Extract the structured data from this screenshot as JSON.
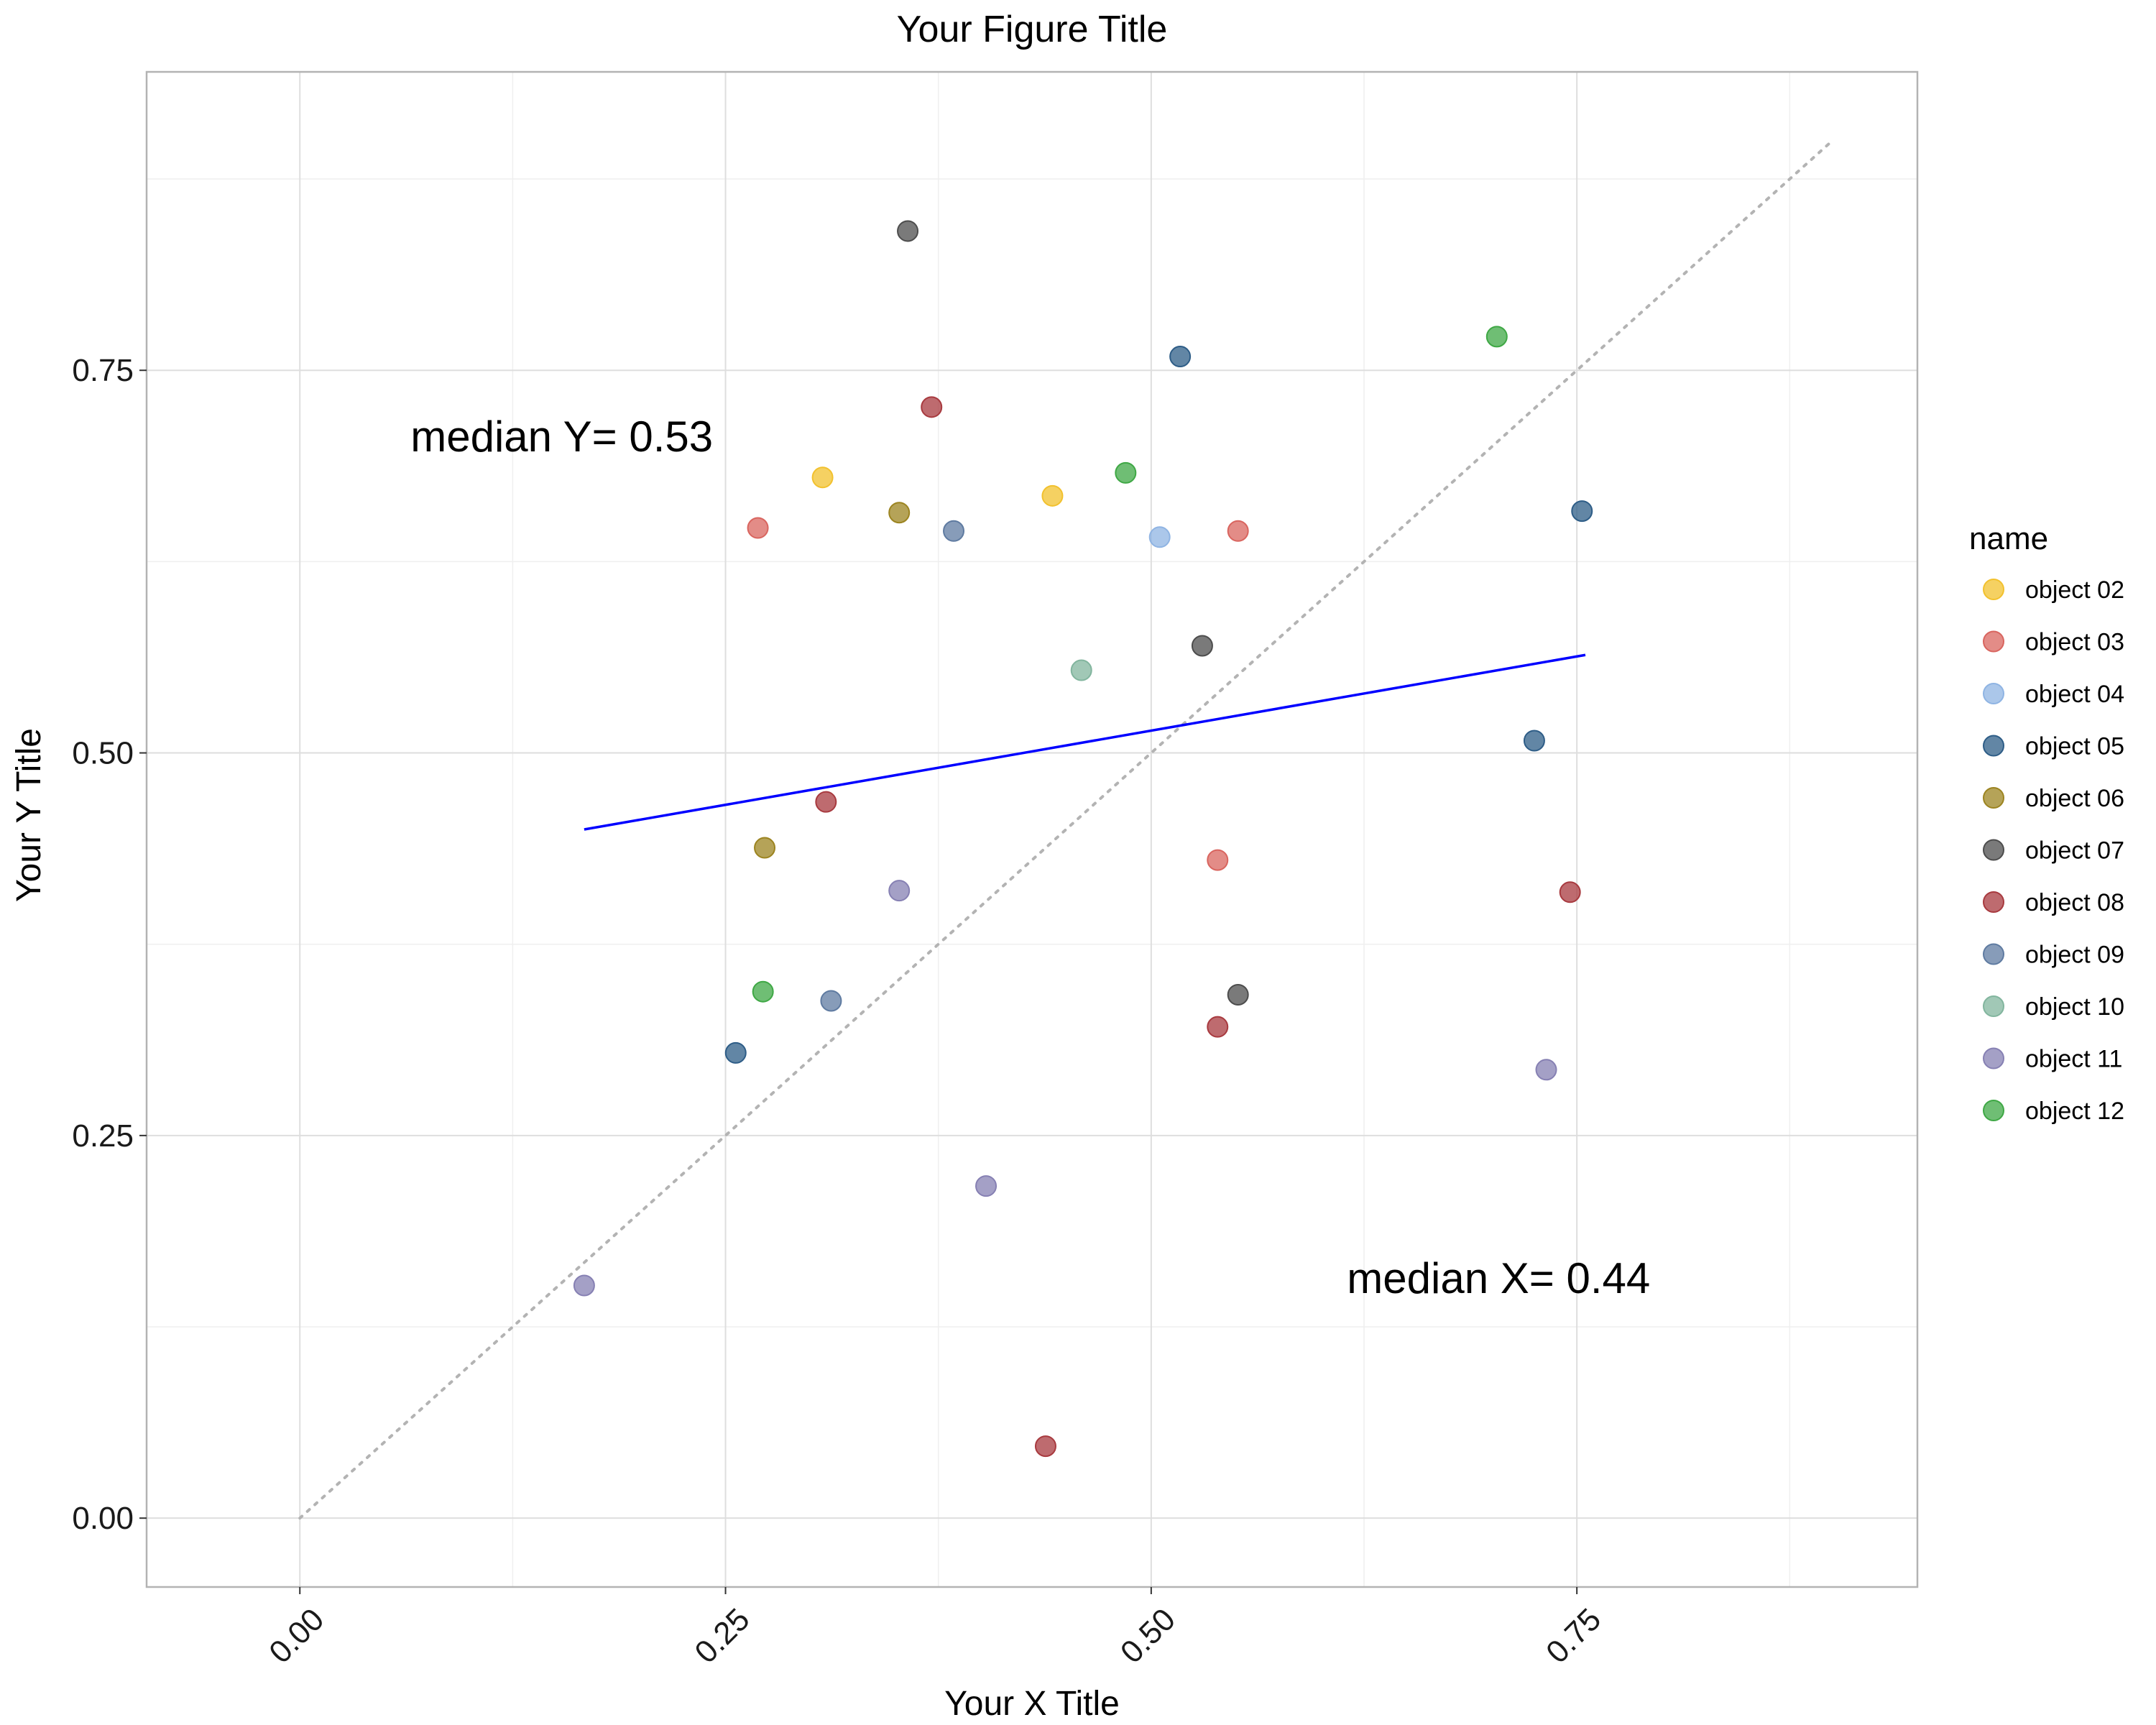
{
  "chart_data": {
    "type": "scatter",
    "title": "Your Figure Title",
    "xlabel": "Your X Title",
    "ylabel": "Your Y Title",
    "xlim": [
      -0.09,
      0.95
    ],
    "ylim": [
      -0.045,
      0.945
    ],
    "x_ticks": [
      "0.00",
      "0.25",
      "0.50",
      "0.75"
    ],
    "y_ticks": [
      "0.00",
      "0.25",
      "0.50",
      "0.75"
    ],
    "grid": true,
    "legend": {
      "title": "name",
      "position": "right",
      "entries": [
        {
          "label": "object 02",
          "color": "#F2C12E"
        },
        {
          "label": "object 03",
          "color": "#D9655F"
        },
        {
          "label": "object 04",
          "color": "#8FB4E3"
        },
        {
          "label": "object 05",
          "color": "#2E5D87"
        },
        {
          "label": "object 06",
          "color": "#9C8420"
        },
        {
          "label": "object 07",
          "color": "#4D4D4D"
        },
        {
          "label": "object 08",
          "color": "#A83A3F"
        },
        {
          "label": "object 09",
          "color": "#5F7BA1"
        },
        {
          "label": "object 10",
          "color": "#82B59E"
        },
        {
          "label": "object 11",
          "color": "#8680B3"
        },
        {
          "label": "object 12",
          "color": "#3FA845"
        }
      ]
    },
    "series": [
      {
        "name": "object 02",
        "points": [
          [
            0.307,
            0.68
          ],
          [
            0.442,
            0.668
          ]
        ]
      },
      {
        "name": "object 03",
        "points": [
          [
            0.269,
            0.647
          ],
          [
            0.551,
            0.645
          ],
          [
            0.539,
            0.43
          ]
        ]
      },
      {
        "name": "object 04",
        "points": [
          [
            0.505,
            0.641
          ]
        ]
      },
      {
        "name": "object 05",
        "points": [
          [
            0.517,
            0.759
          ],
          [
            0.753,
            0.658
          ],
          [
            0.725,
            0.508
          ],
          [
            0.256,
            0.304
          ]
        ]
      },
      {
        "name": "object 06",
        "points": [
          [
            0.352,
            0.657
          ],
          [
            0.273,
            0.438
          ]
        ]
      },
      {
        "name": "object 07",
        "points": [
          [
            0.357,
            0.841
          ],
          [
            0.53,
            0.57
          ],
          [
            0.551,
            0.342
          ]
        ]
      },
      {
        "name": "object 08",
        "points": [
          [
            0.371,
            0.726
          ],
          [
            0.309,
            0.468
          ],
          [
            0.539,
            0.321
          ],
          [
            0.746,
            0.409
          ],
          [
            0.438,
            0.047
          ]
        ]
      },
      {
        "name": "object 09",
        "points": [
          [
            0.384,
            0.645
          ],
          [
            0.312,
            0.338
          ]
        ]
      },
      {
        "name": "object 10",
        "points": [
          [
            0.459,
            0.554
          ]
        ]
      },
      {
        "name": "object 11",
        "points": [
          [
            0.352,
            0.41
          ],
          [
            0.403,
            0.217
          ],
          [
            0.732,
            0.293
          ],
          [
            0.167,
            0.152
          ]
        ]
      },
      {
        "name": "object 12",
        "points": [
          [
            0.485,
            0.683
          ],
          [
            0.703,
            0.772
          ],
          [
            0.272,
            0.344
          ]
        ]
      }
    ],
    "reference_lines": [
      {
        "kind": "identity",
        "style": "dotted",
        "color": "#B3B3B3",
        "from": [
          0.0,
          0.0
        ],
        "to": [
          0.9,
          0.9
        ]
      },
      {
        "kind": "fit",
        "style": "solid",
        "color": "#0000FF",
        "from": [
          0.167,
          0.45
        ],
        "to": [
          0.755,
          0.564
        ]
      }
    ],
    "annotations": [
      {
        "text": "median Y= 0.53",
        "x": 0.065,
        "y": 0.697
      },
      {
        "text": "median X= 0.44",
        "x": 0.615,
        "y": 0.147
      }
    ]
  }
}
